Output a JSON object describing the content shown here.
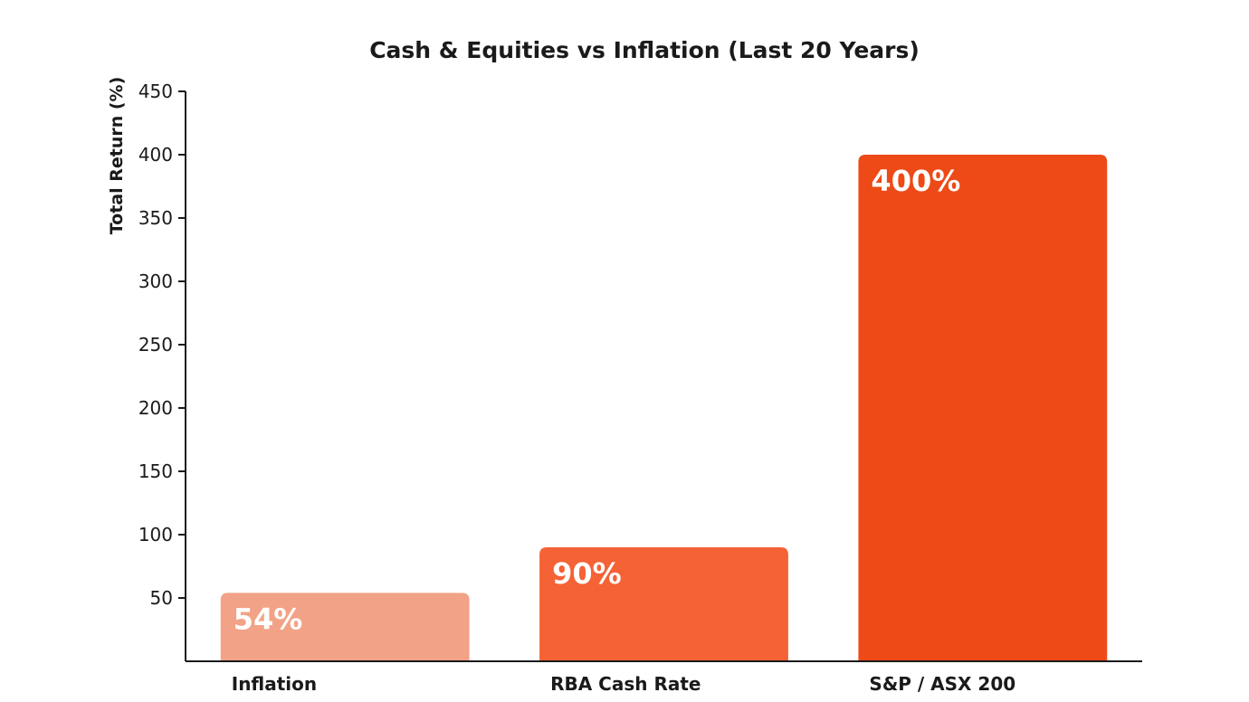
{
  "chart_data": {
    "type": "bar",
    "title": "Cash & Equities vs Inflation (Last 20 Years)",
    "xlabel": "",
    "ylabel": "Total Return (%)",
    "ylim": [
      0,
      450
    ],
    "yticks": [
      50,
      100,
      150,
      200,
      250,
      300,
      350,
      400,
      450
    ],
    "categories": [
      "Inflation",
      "RBA Cash Rate",
      "S&P / ASX 200"
    ],
    "values": [
      54,
      90,
      400
    ],
    "data_labels": [
      "54%",
      "90%",
      "400%"
    ],
    "colors": [
      "#F2A286",
      "#F46236",
      "#EE4A17"
    ],
    "grid": false,
    "legend": "none"
  }
}
